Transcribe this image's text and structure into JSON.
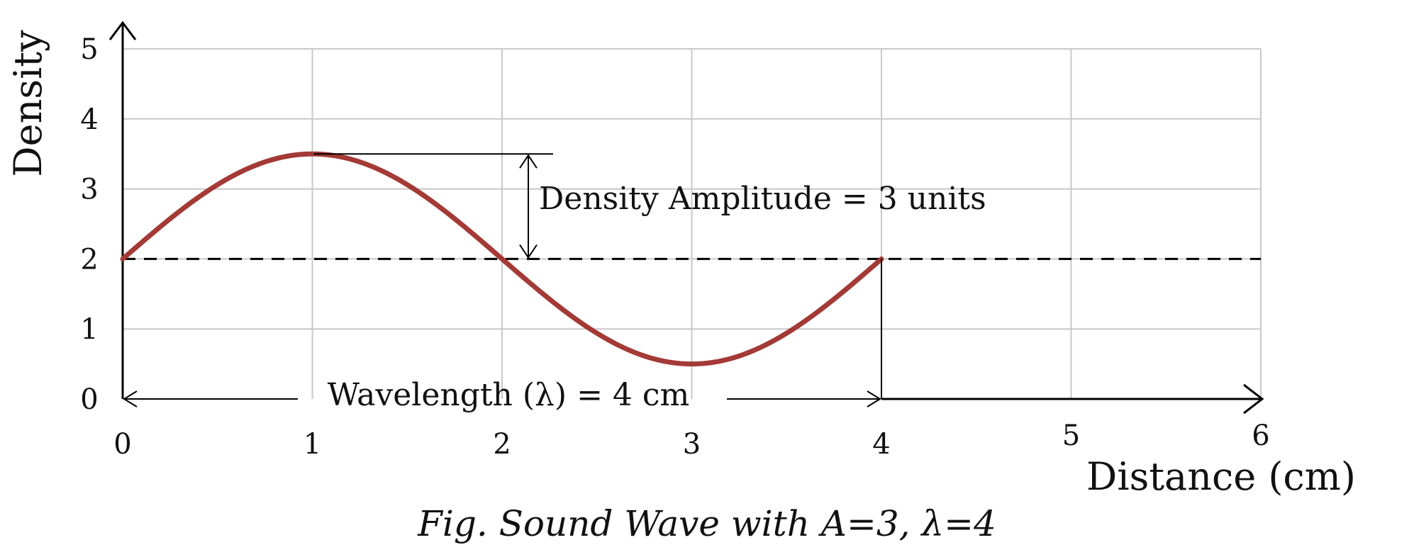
{
  "chart_data": {
    "type": "line",
    "title": "",
    "caption": "Fig. Sound Wave with A=3, λ=4",
    "xlabel": "Distance (cm)",
    "ylabel": "Density",
    "xlim": [
      0,
      6
    ],
    "ylim": [
      0,
      5
    ],
    "x_ticks": [
      "0",
      "1",
      "2",
      "3",
      "4",
      "5",
      "6"
    ],
    "y_ticks": [
      "0",
      "1",
      "2",
      "3",
      "4",
      "5"
    ],
    "grid": true,
    "series": [
      {
        "color": "#a33a36",
        "x": [
          0,
          0.5,
          1,
          1.5,
          2,
          2.5,
          3,
          3.5,
          4
        ],
        "y": [
          2,
          3.06,
          3.5,
          3.06,
          2,
          0.94,
          0.5,
          0.94,
          2
        ]
      }
    ],
    "equilibrium_line": {
      "y": 2,
      "style": "dashed",
      "color": "#000000"
    },
    "annotations": {
      "amplitude": {
        "text": "Density Amplitude = 3 units"
      },
      "wavelength": {
        "text": "Wavelength (λ) = 4 cm"
      }
    },
    "colors": {
      "curve": "#a33a36",
      "grid": "#c8c8c8",
      "axis": "#000000"
    }
  }
}
